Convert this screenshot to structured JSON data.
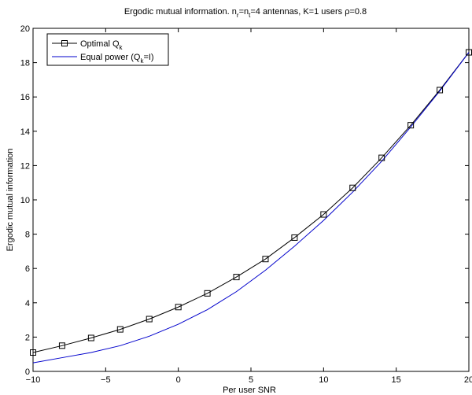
{
  "chart_data": {
    "type": "line",
    "title": {
      "part1": "Ergodic mutual information. n",
      "sub1": "r",
      "part2": "=n",
      "sub2": "t",
      "part3": "=4 antennas, K=1 users ρ=0.8"
    },
    "xlabel": "Per user SNR",
    "ylabel": "Ergodic mutual information",
    "xlim": [
      -10,
      20
    ],
    "ylim": [
      0,
      20
    ],
    "xticks": [
      -10,
      -5,
      0,
      5,
      10,
      15,
      20
    ],
    "yticks": [
      0,
      2,
      4,
      6,
      8,
      10,
      12,
      14,
      16,
      18,
      20
    ],
    "grid": false,
    "legend_position": "top-left",
    "series": [
      {
        "name": "Optimal Q",
        "name_sub": "k",
        "color": "#000000",
        "marker": "square",
        "x": [
          -10,
          -8,
          -6,
          -4,
          -2,
          0,
          2,
          4,
          6,
          8,
          10,
          12,
          14,
          16,
          18,
          20
        ],
        "y": [
          1.1,
          1.5,
          1.95,
          2.45,
          3.05,
          3.75,
          4.55,
          5.5,
          6.55,
          7.8,
          9.15,
          10.7,
          12.45,
          14.35,
          16.4,
          18.6
        ]
      },
      {
        "name": "Equal power (Q",
        "name_sub": "k",
        "name_tail": "=I)",
        "color": "#0000cc",
        "marker": "none",
        "x": [
          -10,
          -8,
          -6,
          -4,
          -2,
          0,
          2,
          4,
          6,
          8,
          10,
          12,
          14,
          16,
          18,
          20
        ],
        "y": [
          0.5,
          0.8,
          1.1,
          1.5,
          2.05,
          2.75,
          3.6,
          4.65,
          5.9,
          7.3,
          8.8,
          10.45,
          12.25,
          14.25,
          16.35,
          18.6
        ]
      }
    ]
  }
}
